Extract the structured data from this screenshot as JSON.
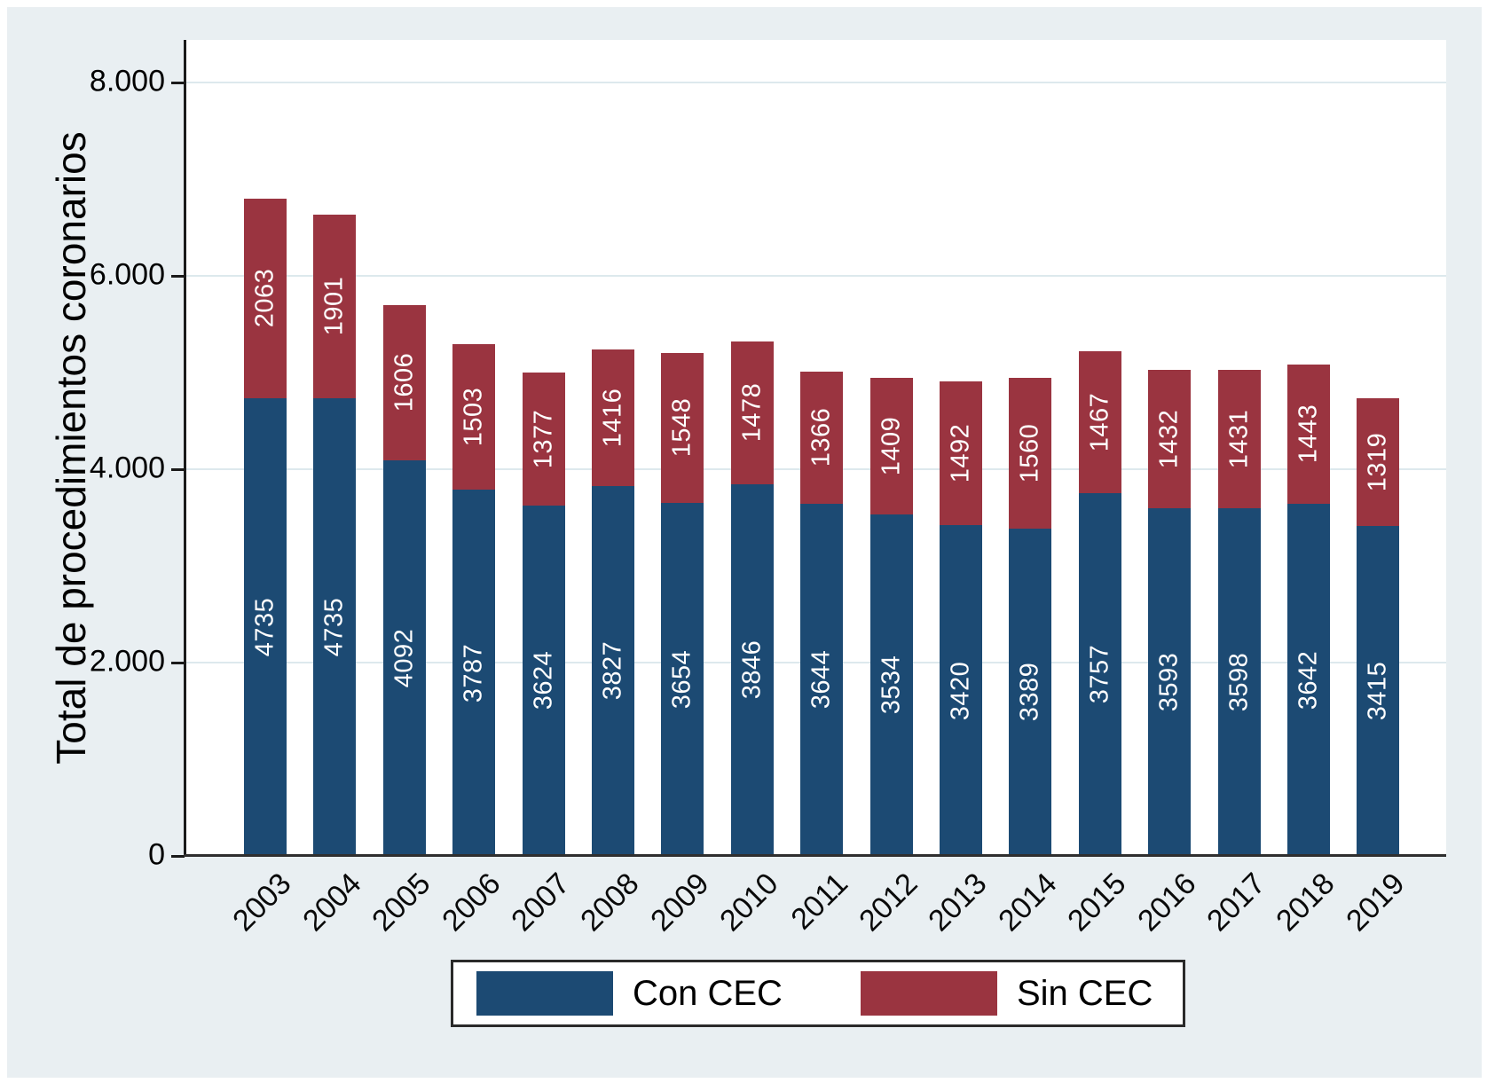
{
  "chart_data": {
    "type": "bar",
    "stacked": true,
    "title": "",
    "xlabel": "",
    "ylabel": "Total de procedimientos coronarios",
    "categories": [
      "2003",
      "2004",
      "2005",
      "2006",
      "2007",
      "2008",
      "2009",
      "2010",
      "2011",
      "2012",
      "2013",
      "2014",
      "2015",
      "2016",
      "2017",
      "2018",
      "2019"
    ],
    "series": [
      {
        "name": "Con CEC",
        "color": "#1c4a73",
        "values": [
          4735,
          4735,
          4092,
          3787,
          3624,
          3827,
          3654,
          3846,
          3644,
          3534,
          3420,
          3389,
          3757,
          3593,
          3598,
          3642,
          3415
        ]
      },
      {
        "name": "Sin CEC",
        "color": "#9a3440",
        "values": [
          2063,
          1901,
          1606,
          1503,
          1377,
          1416,
          1548,
          1478,
          1366,
          1409,
          1492,
          1560,
          1467,
          1432,
          1431,
          1443,
          1319
        ]
      }
    ],
    "bar_label_color": "#ffffff",
    "ylim": [
      0,
      8440
    ],
    "yticks": [
      {
        "value": 0,
        "label": "0"
      },
      {
        "value": 2000,
        "label": "2.000"
      },
      {
        "value": 4000,
        "label": "4.000"
      },
      {
        "value": 6000,
        "label": "6.000"
      },
      {
        "value": 8000,
        "label": "8.000"
      }
    ],
    "grid": true,
    "legend_position": "bottom"
  },
  "style": {
    "figure_background": "#e9eff2",
    "plot_background": "#ffffff",
    "gridline_color": "#dde9ed",
    "axis_color": "#1a1a1a",
    "text_color": "#000000"
  }
}
